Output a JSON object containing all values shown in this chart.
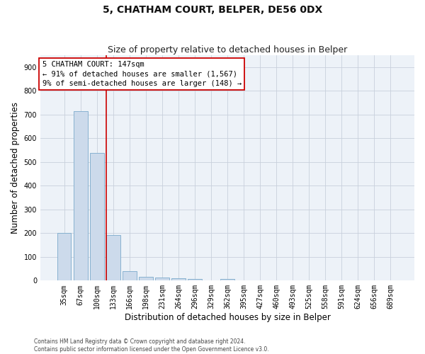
{
  "title": "5, CHATHAM COURT, BELPER, DE56 0DX",
  "subtitle": "Size of property relative to detached houses in Belper",
  "xlabel": "Distribution of detached houses by size in Belper",
  "ylabel": "Number of detached properties",
  "categories": [
    "35sqm",
    "67sqm",
    "100sqm",
    "133sqm",
    "166sqm",
    "198sqm",
    "231sqm",
    "264sqm",
    "296sqm",
    "329sqm",
    "362sqm",
    "395sqm",
    "427sqm",
    "460sqm",
    "493sqm",
    "525sqm",
    "558sqm",
    "591sqm",
    "624sqm",
    "656sqm",
    "689sqm"
  ],
  "values": [
    200,
    715,
    537,
    193,
    40,
    17,
    14,
    11,
    7,
    0,
    6,
    0,
    0,
    0,
    0,
    0,
    0,
    0,
    0,
    0,
    0
  ],
  "bar_color": "#ccdaeb",
  "bar_edge_color": "#7aaacb",
  "grid_color": "#c8d0dc",
  "vline_color": "#cc0000",
  "vline_pos": 2.57,
  "annotation_text": "5 CHATHAM COURT: 147sqm\n← 91% of detached houses are smaller (1,567)\n9% of semi-detached houses are larger (148) →",
  "ylim": [
    0,
    950
  ],
  "yticks": [
    0,
    100,
    200,
    300,
    400,
    500,
    600,
    700,
    800,
    900
  ],
  "footnote": "Contains HM Land Registry data © Crown copyright and database right 2024.\nContains public sector information licensed under the Open Government Licence v3.0.",
  "bg_color": "#edf2f8",
  "title_fontsize": 10,
  "subtitle_fontsize": 9,
  "tick_fontsize": 7,
  "ylabel_fontsize": 8.5,
  "xlabel_fontsize": 8.5,
  "annotation_fontsize": 7.5,
  "footnote_fontsize": 5.5
}
